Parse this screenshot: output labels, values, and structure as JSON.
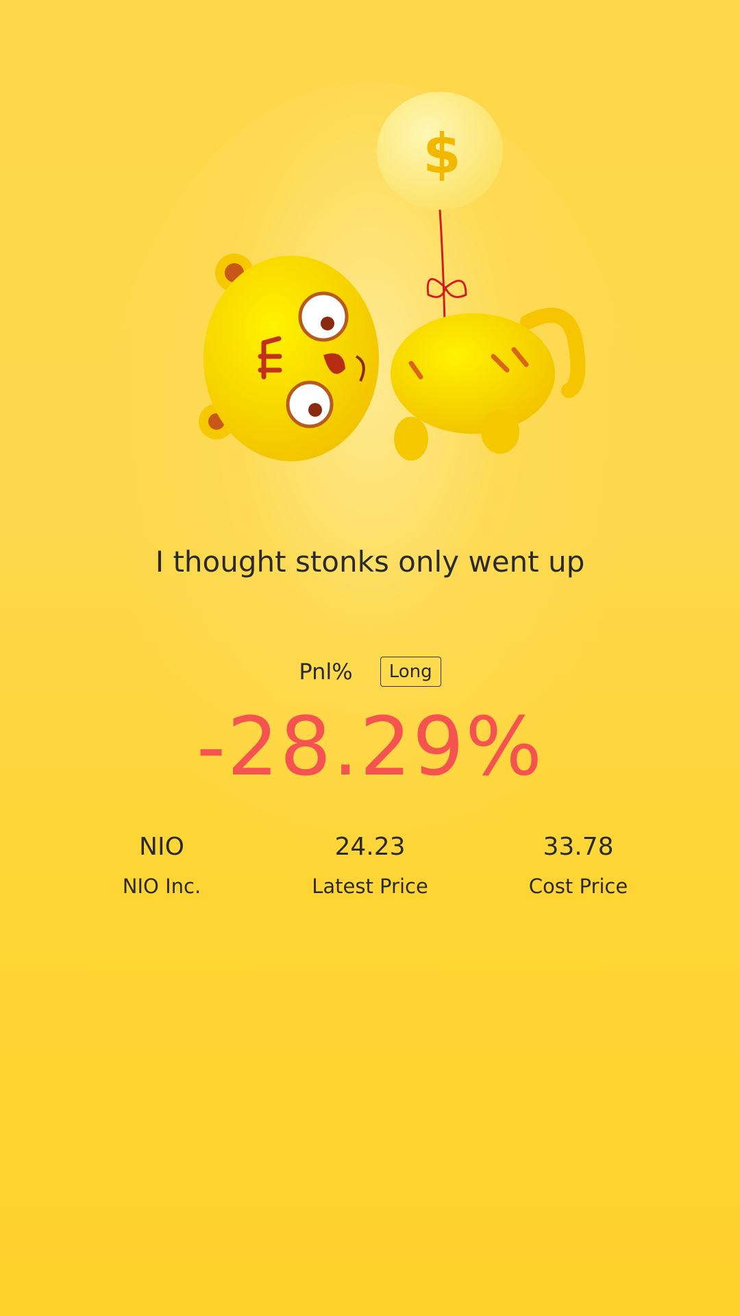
{
  "headline": "I thought stonks only went up",
  "pnl": {
    "label": "Pnl%",
    "direction": "Long",
    "value": "-28.29%",
    "value_color": "#f5534f"
  },
  "stats": [
    {
      "value": "NIO",
      "label": "NIO Inc."
    },
    {
      "value": "24.23",
      "label": "Latest Price"
    },
    {
      "value": "33.78",
      "label": "Cost Price"
    }
  ],
  "illustration": {
    "icon": "tiger-with-dollar-balloon-icon",
    "balloon_symbol": "$"
  }
}
